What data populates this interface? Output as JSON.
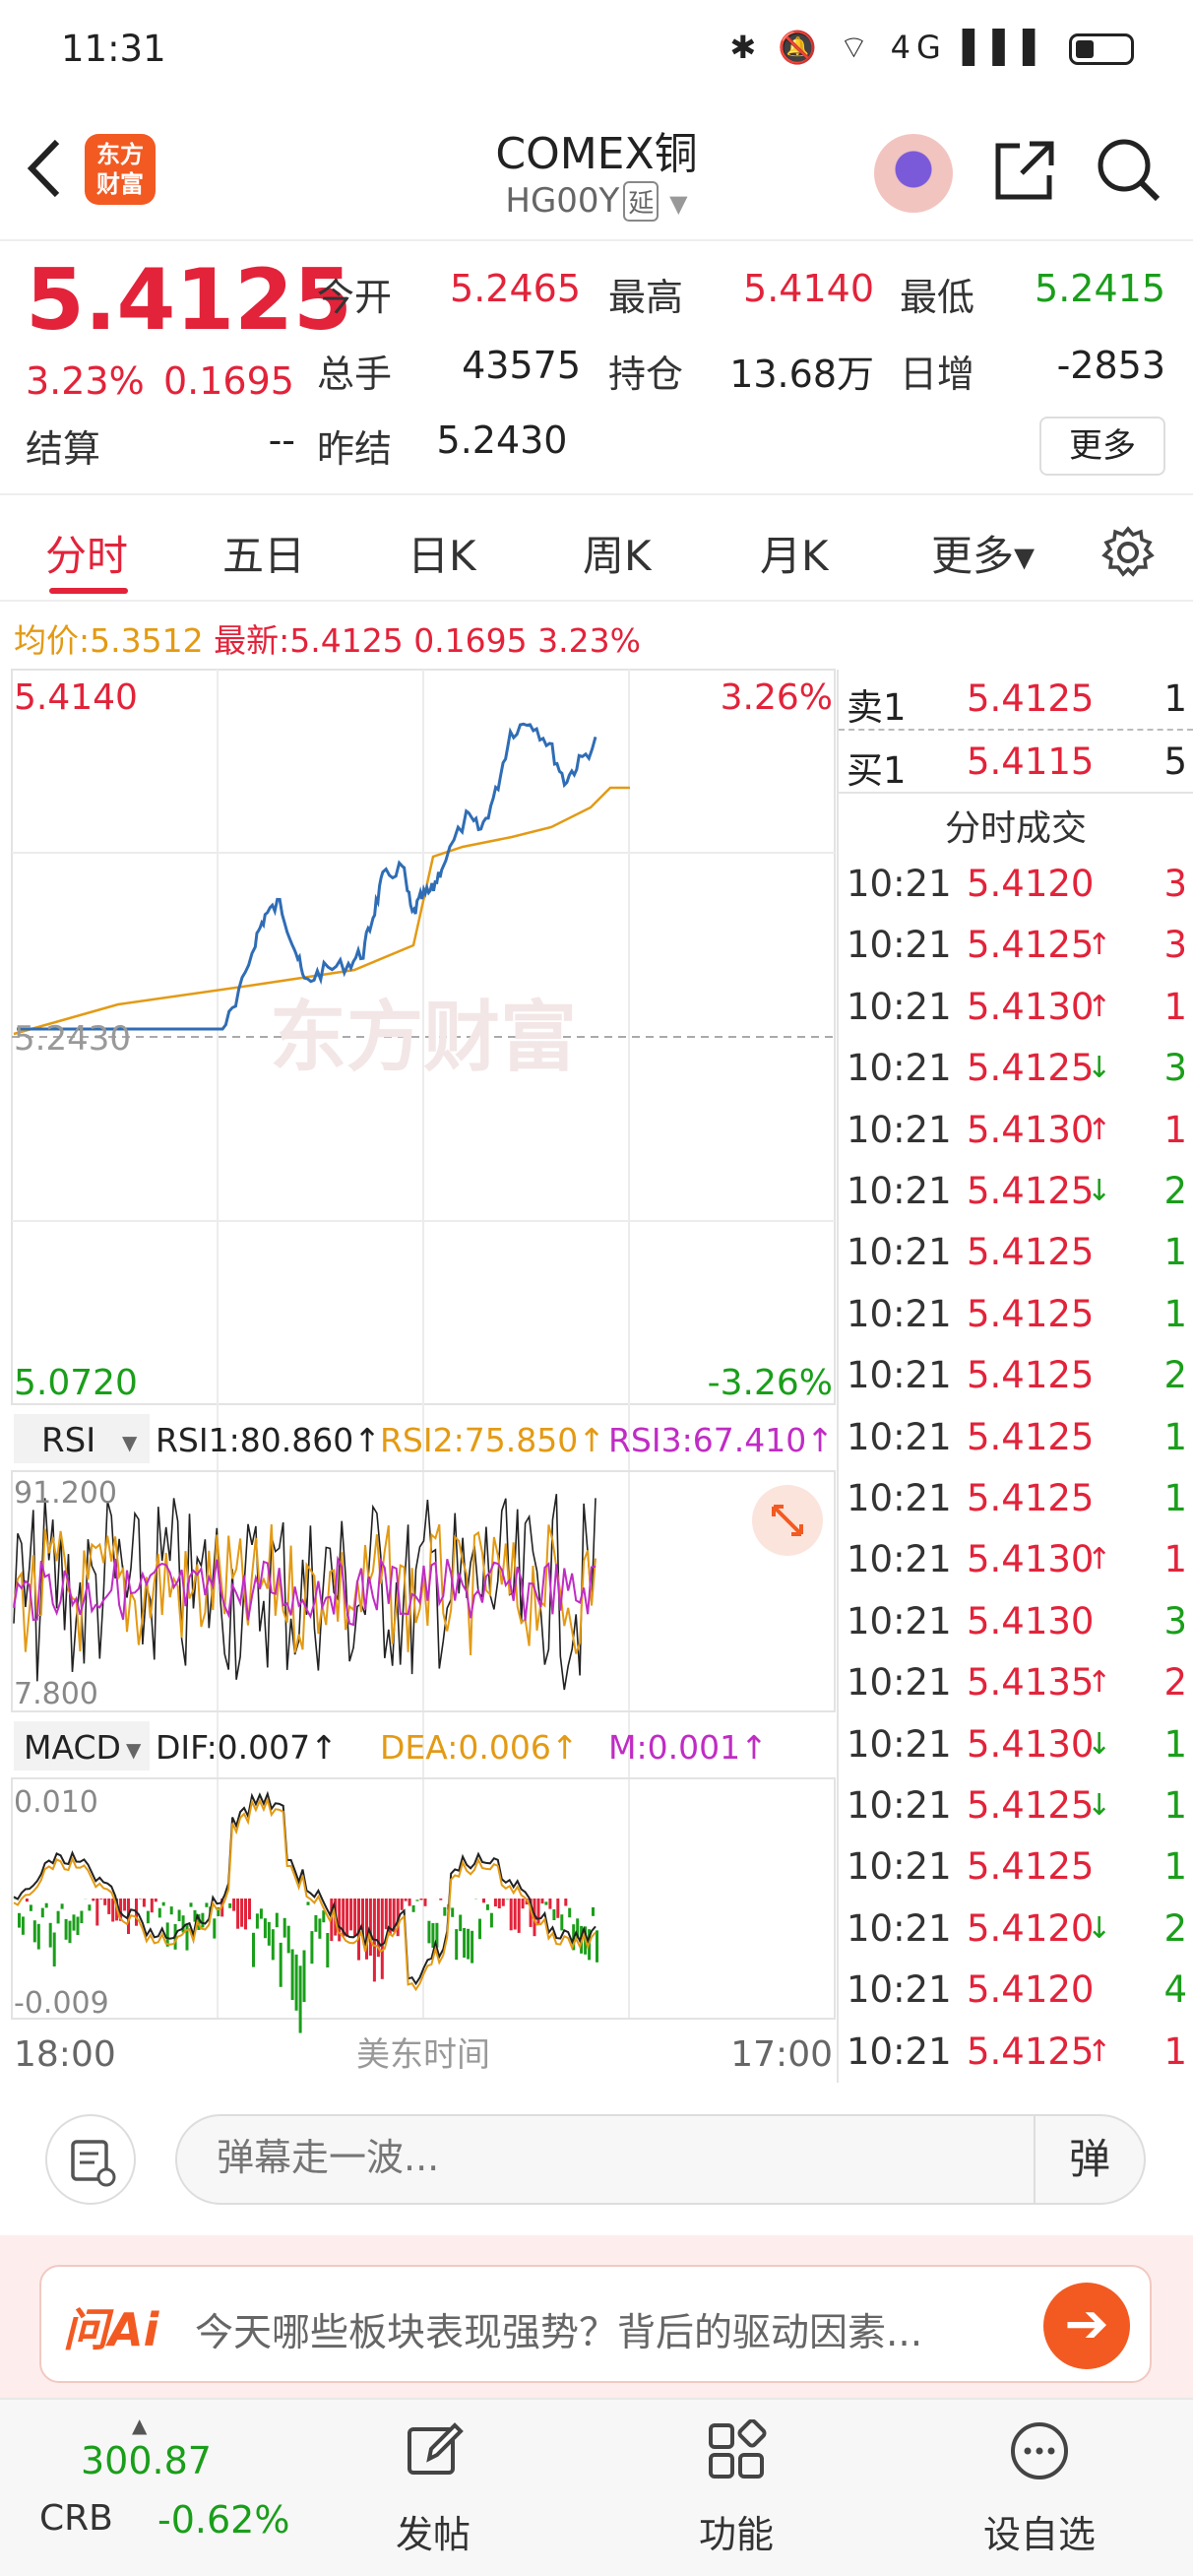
{
  "status": {
    "time": "11:31",
    "icons": "✱ 🔕 ⌔ 4G ▌▌▌"
  },
  "header": {
    "title": "COMEX铜",
    "code": "HG00Y",
    "delay_tag": "延",
    "logo_text_1": "东方",
    "logo_text_2": "财富"
  },
  "quote": {
    "last": "5.4125",
    "chg_pct": "3.23%",
    "chg": "0.1695",
    "open_label": "今开",
    "open": "5.2465",
    "high_label": "最高",
    "high": "5.4140",
    "low_label": "最低",
    "low": "5.2415",
    "volume_label": "总手",
    "volume": "43575",
    "oi_label": "持仓",
    "oi": "13.68万",
    "daily_inc_label": "日增",
    "daily_inc": "-2853",
    "settle_label": "结算",
    "settle": "--",
    "prev_settle_label": "昨结",
    "prev_settle": "5.2430",
    "more_button": "更多"
  },
  "tabs": [
    "分时",
    "五日",
    "日K",
    "周K",
    "月K",
    "更多▾"
  ],
  "avg_bar": {
    "avg_label": "均价:",
    "avg": "5.3512",
    "latest_label": "最新:",
    "latest": "5.4125",
    "chg": "0.1695",
    "pct": "3.23%"
  },
  "watermark": "东方财富",
  "main_chart": {
    "y_high": "5.4140",
    "y_high_pct": "3.26%",
    "y_mid": "5.2430",
    "y_low": "5.0720",
    "y_low_pct": "-3.26%"
  },
  "rsi": {
    "selector": "RSI",
    "rsi1": "RSI1:80.860↑",
    "rsi2": "RSI2:75.850↑",
    "rsi3": "RSI3:67.410↑",
    "y_top": "91.200",
    "y_bottom": "7.800"
  },
  "macd": {
    "selector": "MACD",
    "dif": "DIF:0.007↑",
    "dea": "DEA:0.006↑",
    "m": "M:0.001↑",
    "y_top": "0.010",
    "y_bottom": "-0.009"
  },
  "time_axis": {
    "start": "18:00",
    "middle": "美东时间",
    "end": "17:00"
  },
  "orderbook": {
    "ask_label": "卖1",
    "ask_price": "5.4125",
    "ask_vol": "1",
    "bid_label": "买1",
    "bid_price": "5.4115",
    "bid_vol": "5",
    "trades_title": "分时成交",
    "trades": [
      {
        "t": "10:21",
        "p": "5.4120",
        "a": "",
        "v": "3",
        "c": "red"
      },
      {
        "t": "10:21",
        "p": "5.4125",
        "a": "↑",
        "v": "3",
        "c": "red"
      },
      {
        "t": "10:21",
        "p": "5.4130",
        "a": "↑",
        "v": "1",
        "c": "red"
      },
      {
        "t": "10:21",
        "p": "5.4125",
        "a": "↓",
        "v": "3",
        "c": "green"
      },
      {
        "t": "10:21",
        "p": "5.4130",
        "a": "↑",
        "v": "1",
        "c": "red"
      },
      {
        "t": "10:21",
        "p": "5.4125",
        "a": "↓",
        "v": "2",
        "c": "green"
      },
      {
        "t": "10:21",
        "p": "5.4125",
        "a": "",
        "v": "1",
        "c": "green"
      },
      {
        "t": "10:21",
        "p": "5.4125",
        "a": "",
        "v": "1",
        "c": "green"
      },
      {
        "t": "10:21",
        "p": "5.4125",
        "a": "",
        "v": "2",
        "c": "green"
      },
      {
        "t": "10:21",
        "p": "5.4125",
        "a": "",
        "v": "1",
        "c": "green"
      },
      {
        "t": "10:21",
        "p": "5.4125",
        "a": "",
        "v": "1",
        "c": "green"
      },
      {
        "t": "10:21",
        "p": "5.4130",
        "a": "↑",
        "v": "1",
        "c": "red"
      },
      {
        "t": "10:21",
        "p": "5.4130",
        "a": "",
        "v": "3",
        "c": "green"
      },
      {
        "t": "10:21",
        "p": "5.4135",
        "a": "↑",
        "v": "2",
        "c": "red"
      },
      {
        "t": "10:21",
        "p": "5.4130",
        "a": "↓",
        "v": "1",
        "c": "green"
      },
      {
        "t": "10:21",
        "p": "5.4125",
        "a": "↓",
        "v": "1",
        "c": "green"
      },
      {
        "t": "10:21",
        "p": "5.4125",
        "a": "",
        "v": "1",
        "c": "green"
      },
      {
        "t": "10:21",
        "p": "5.4120",
        "a": "↓",
        "v": "2",
        "c": "green"
      },
      {
        "t": "10:21",
        "p": "5.4120",
        "a": "",
        "v": "4",
        "c": "green"
      },
      {
        "t": "10:21",
        "p": "5.4125",
        "a": "↑",
        "v": "1",
        "c": "red"
      }
    ]
  },
  "comment": {
    "placeholder": "弹幕走一波...",
    "danmu": "弹"
  },
  "ai": {
    "logo": "问Ai",
    "prompt": "今天哪些板块表现强势？背后的驱动因素..."
  },
  "bottom_nav": {
    "crb_value": "300.87",
    "crb_name": "CRB",
    "crb_chg": "-0.62%",
    "post": "发帖",
    "func": "功能",
    "watch": "设自选"
  },
  "colors": {
    "up": "#e2233a",
    "down": "#1a9e1a",
    "price_line": "#2f6db5",
    "avg_line": "#e39a14",
    "rsi3": "#c02cc4",
    "brand": "#f25a22"
  }
}
